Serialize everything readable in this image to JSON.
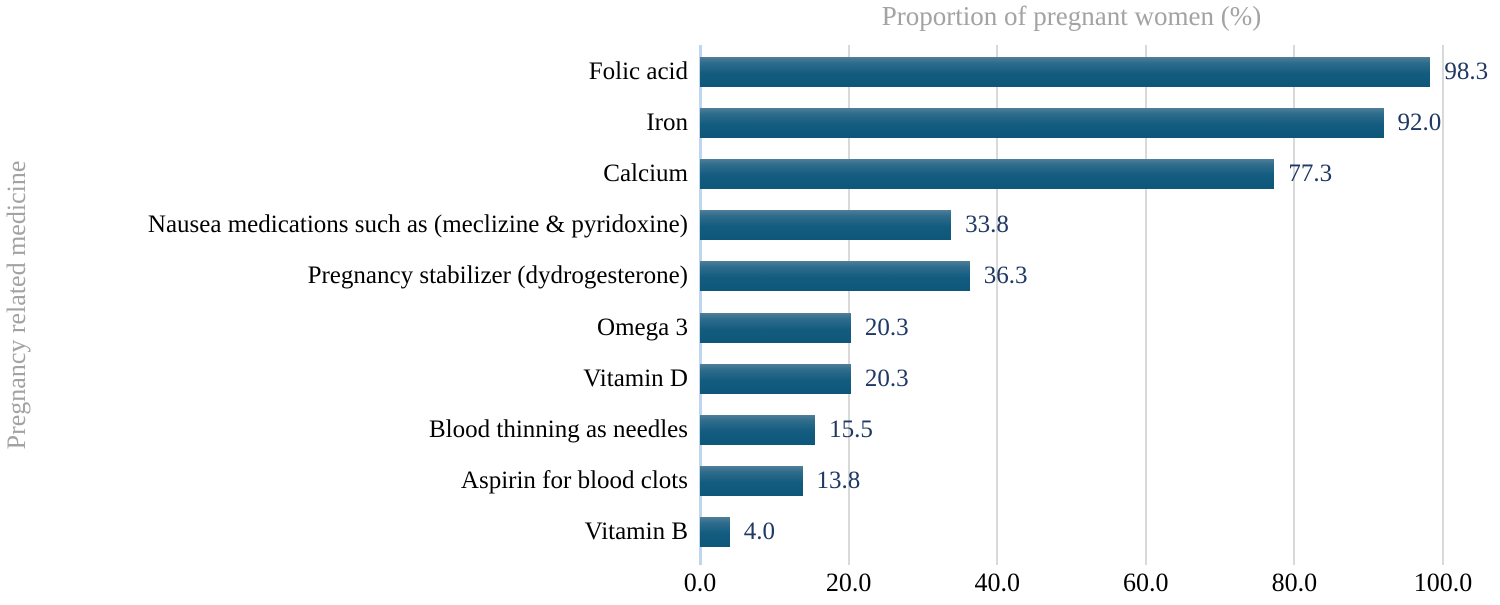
{
  "chart_data": {
    "type": "bar",
    "orientation": "horizontal",
    "title": "Proportion of pregnant women (%)",
    "xlabel": "",
    "ylabel": "Pregnancy related medicine",
    "categories": [
      "Folic acid",
      "Iron",
      "Calcium",
      "Nausea medications such as (meclizine & pyridoxine)",
      "Pregnancy stabilizer (dydrogesterone)",
      "Omega 3",
      "Vitamin D",
      "Blood thinning as needles",
      "Aspirin for blood clots",
      "Vitamin B"
    ],
    "values": [
      98.3,
      92.0,
      77.3,
      33.8,
      36.3,
      20.3,
      20.3,
      15.5,
      13.8,
      4.0
    ],
    "value_labels": [
      "98.3",
      "92.0",
      "77.3",
      "33.8",
      "36.3",
      "20.3",
      "20.3",
      "15.5",
      "13.8",
      "4.0"
    ],
    "xlim": [
      0,
      100
    ],
    "xticks": [
      0,
      20,
      40,
      60,
      80,
      100
    ],
    "xtick_labels": [
      "0.0",
      "20.0",
      "40.0",
      "60.0",
      "80.0",
      "100.0"
    ],
    "grid": "vertical-gridlines-on",
    "legend": "none",
    "colors": {
      "bar_gradient_top": "#517f9a",
      "bar_main": "#135c80",
      "value_label": "#1f3864",
      "category_label": "#000000",
      "axis_title_gray": "#a3a3a3",
      "gridline": "#d9d9d9",
      "zero_axis_line": "#bdd7ee",
      "background": "#ffffff"
    }
  }
}
